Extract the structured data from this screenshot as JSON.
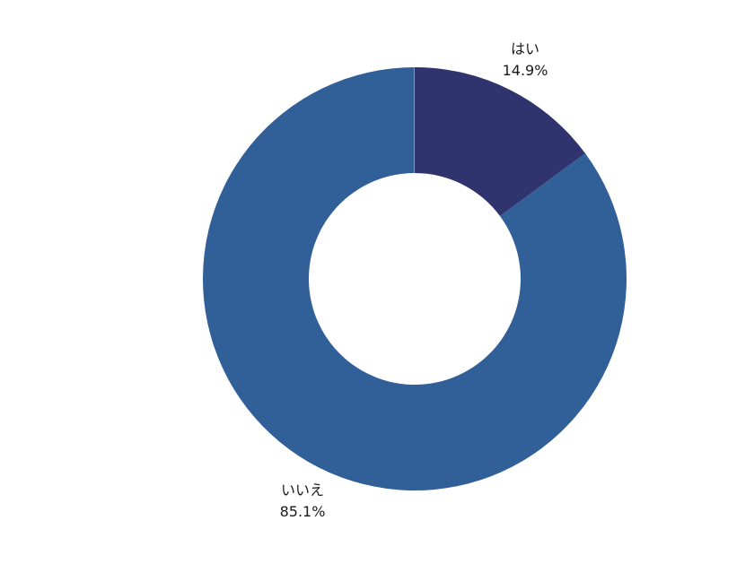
{
  "chart_data": {
    "type": "pie",
    "variant": "donut",
    "legend": "none",
    "slices": [
      {
        "label": "はい",
        "value": 14.9,
        "value_label": "14.9%",
        "color": "#30346e"
      },
      {
        "label": "いいえ",
        "value": 85.1,
        "value_label": "85.1%",
        "color": "#315f98"
      }
    ]
  }
}
